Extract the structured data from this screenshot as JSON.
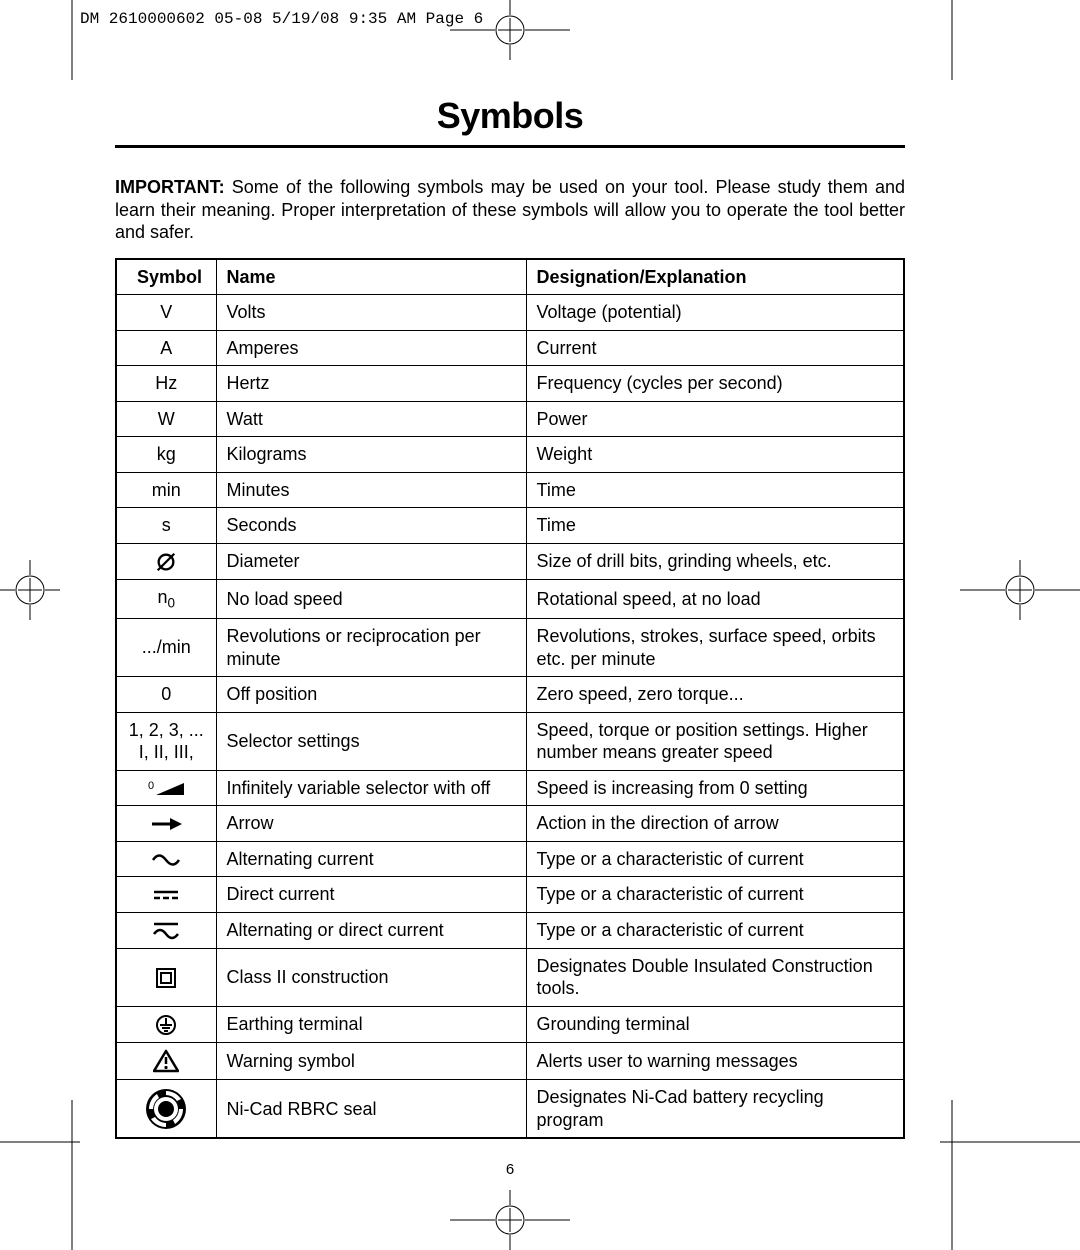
{
  "header_text": "DM 2610000602 05-08  5/19/08  9:35 AM  Page 6",
  "title": "Symbols",
  "intro_label": "IMPORTANT:",
  "intro_text": " Some of the following symbols may be used on your tool.  Please study them and learn their meaning.  Proper interpretation of these symbols will allow you to operate the tool better and safer.",
  "columns": [
    "Symbol",
    "Name",
    "Designation/Explanation"
  ],
  "rows": [
    {
      "sym_type": "text",
      "sym": "V",
      "name": "Volts",
      "desc": "Voltage (potential)"
    },
    {
      "sym_type": "text",
      "sym": "A",
      "name": "Amperes",
      "desc": "Current"
    },
    {
      "sym_type": "text",
      "sym": "Hz",
      "name": "Hertz",
      "desc": "Frequency (cycles per second)"
    },
    {
      "sym_type": "text",
      "sym": "W",
      "name": "Watt",
      "desc": "Power"
    },
    {
      "sym_type": "text",
      "sym": "kg",
      "name": "Kilograms",
      "desc": "Weight"
    },
    {
      "sym_type": "text",
      "sym": "min",
      "name": "Minutes",
      "desc": "Time"
    },
    {
      "sym_type": "text",
      "sym": "s",
      "name": "Seconds",
      "desc": "Time"
    },
    {
      "sym_type": "svg",
      "sym": "diameter",
      "name": "Diameter",
      "desc": "Size of drill bits, grinding wheels,  etc."
    },
    {
      "sym_type": "html",
      "sym": "n<sub style='font-size:0.75em'>0</sub>",
      "name": "No load speed",
      "desc": "Rotational speed, at no load"
    },
    {
      "sym_type": "text",
      "sym": ".../min",
      "name": "Revolutions or reciprocation per minute",
      "desc": "Revolutions, strokes, surface speed, orbits etc. per minute"
    },
    {
      "sym_type": "text",
      "sym": "0",
      "name": "Off position",
      "desc": "Zero speed, zero torque..."
    },
    {
      "sym_type": "html",
      "sym": "1, 2, 3, ...<br>I, II, III,",
      "name": "Selector settings",
      "desc": "Speed, torque or position settings. Higher number means greater speed"
    },
    {
      "sym_type": "svg",
      "sym": "variable",
      "name": "Infinitely variable selector with off",
      "desc": "Speed is increasing from 0 setting"
    },
    {
      "sym_type": "svg",
      "sym": "arrow",
      "name": "Arrow",
      "desc": "Action in the direction of arrow"
    },
    {
      "sym_type": "svg",
      "sym": "ac",
      "name": "Alternating current",
      "desc": "Type or a characteristic of current"
    },
    {
      "sym_type": "svg",
      "sym": "dc",
      "name": "Direct current",
      "desc": "Type or a characteristic of current"
    },
    {
      "sym_type": "svg",
      "sym": "acdc",
      "name": "Alternating or direct current",
      "desc": "Type or a characteristic of current"
    },
    {
      "sym_type": "svg",
      "sym": "class2",
      "name": "Class II  construction",
      "desc": "Designates Double Insulated Construction tools."
    },
    {
      "sym_type": "svg",
      "sym": "earth",
      "name": "Earthing terminal",
      "desc": "Grounding terminal"
    },
    {
      "sym_type": "svg",
      "sym": "warning",
      "name": "Warning symbol",
      "desc": "Alerts user to warning messages"
    },
    {
      "sym_type": "svg",
      "sym": "rbrc",
      "name": "Ni-Cad RBRC seal",
      "desc": "Designates Ni-Cad battery recycling program"
    }
  ],
  "page_number": "6",
  "colors": {
    "text": "#000000",
    "bg": "#ffffff",
    "border": "#000000"
  }
}
